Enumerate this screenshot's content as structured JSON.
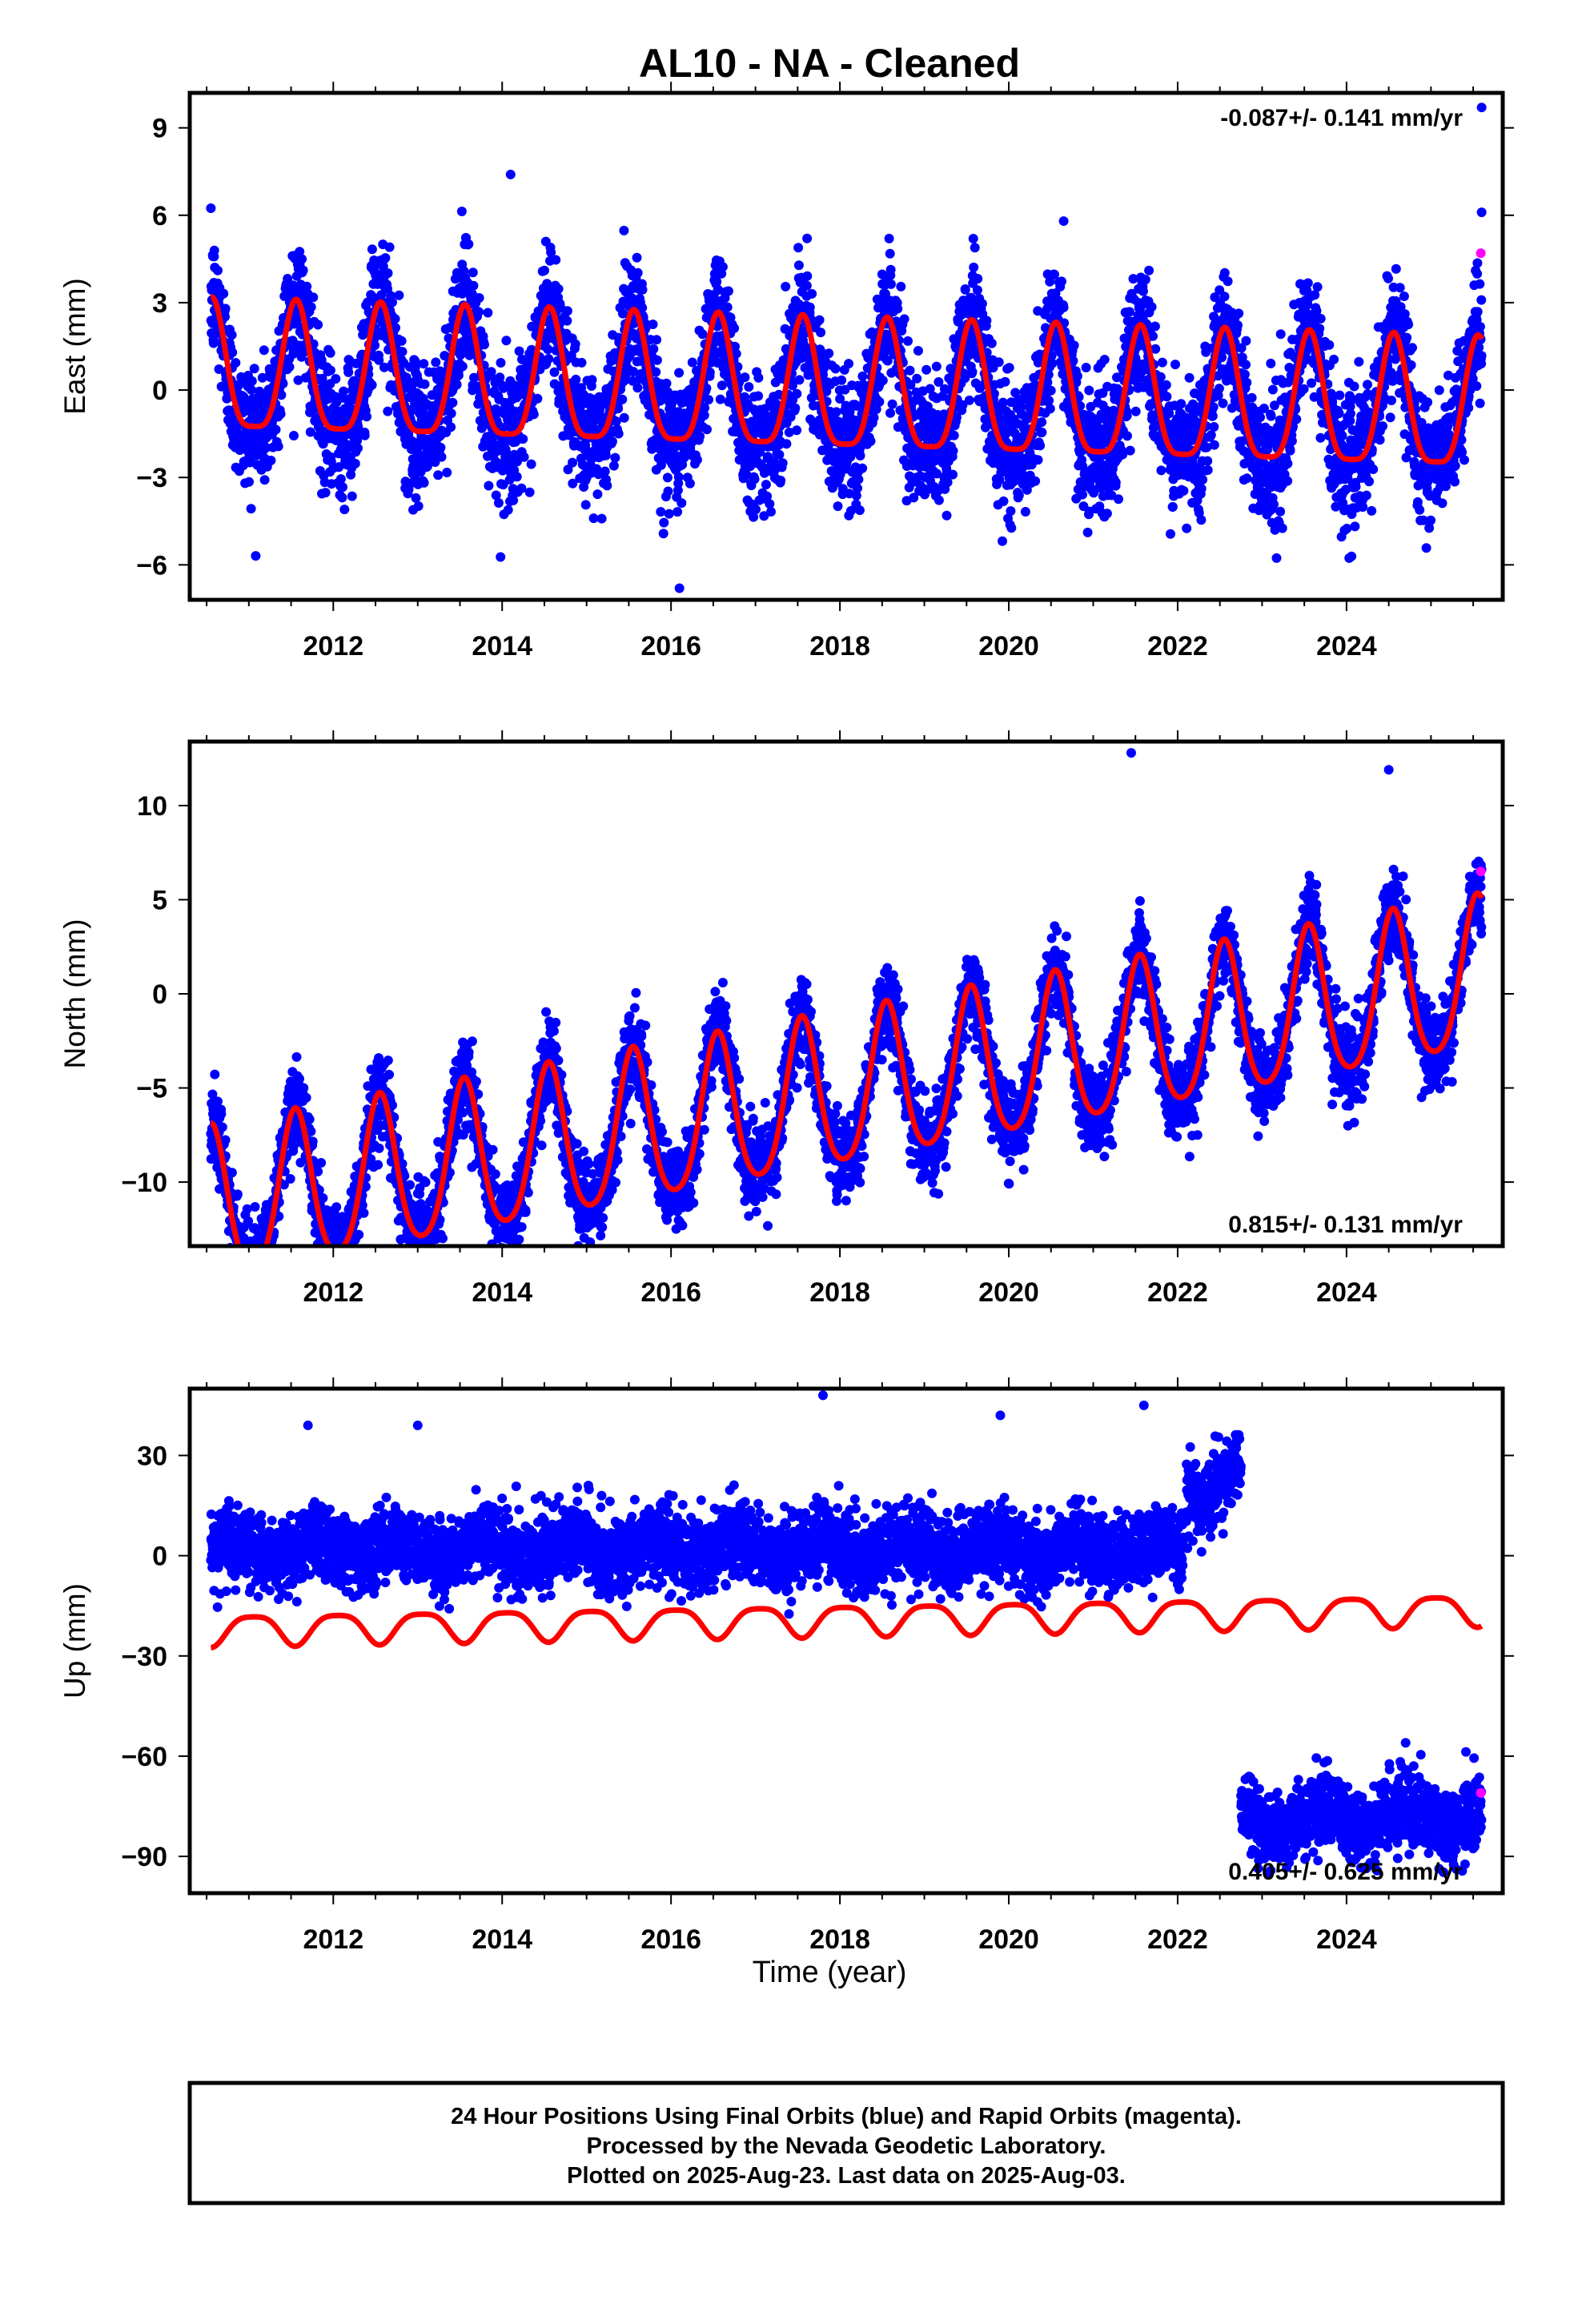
{
  "title": "AL10  - NA - Cleaned",
  "xlabel": "Time (year)",
  "footer": [
    "24 Hour Positions Using Final Orbits (blue) and Rapid Orbits (magenta).",
    "Processed by the Nevada Geodetic Laboratory.",
    "Plotted on 2025-Aug-23. Last data on 2025-Aug-03."
  ],
  "colors": {
    "final": "#0000ff",
    "rapid": "#ff00ff",
    "model": "#ff0000",
    "frame": "#000000"
  },
  "chart_data": [
    {
      "type": "scatter",
      "ylabel": "East (mm)",
      "rate_text": "-0.087+/- 0.141 mm/yr",
      "xlim": [
        2010.3,
        2025.85
      ],
      "ylim": [
        -7.2,
        10.2
      ],
      "x_ticks": [
        "2012",
        "2014",
        "2016",
        "2018",
        "2020",
        "2022",
        "2024"
      ],
      "y_ticks": [
        "9",
        "6",
        "3",
        "0",
        "-3",
        "-6"
      ],
      "y_tick_values": [
        9,
        6,
        3,
        0,
        -3,
        -6
      ],
      "model": {
        "first_epoch": 2010.55,
        "last_epoch": 2025.6,
        "offset": -0.2,
        "trend": -0.087,
        "annual_amp": 2.2,
        "annual_peak": 0.56,
        "semiannual_amp": 0.55,
        "semiannual_peak": 0.06
      },
      "scatter_sd": 1.1,
      "outliers": [
        [
          2014.1,
          7.4
        ],
        [
          2016.1,
          -6.8
        ],
        [
          2020.65,
          5.8
        ],
        [
          2025.6,
          9.7
        ],
        [
          2025.6,
          6.1
        ]
      ],
      "rapid_points": [
        [
          2025.59,
          4.7
        ]
      ],
      "gaps": []
    },
    {
      "type": "scatter",
      "ylabel": "North (mm)",
      "rate_text": "0.815+/- 0.131 mm/yr",
      "xlim": [
        2010.3,
        2025.85
      ],
      "ylim": [
        -13.4,
        13.4
      ],
      "x_ticks": [
        "2012",
        "2014",
        "2016",
        "2018",
        "2020",
        "2022",
        "2024"
      ],
      "y_ticks": [
        "10",
        "5",
        "0",
        "-5",
        "-10"
      ],
      "y_tick_values": [
        10,
        5,
        0,
        -5,
        -10
      ],
      "model": {
        "first_epoch": 2010.55,
        "last_epoch": 2025.6,
        "offset": -5.4,
        "trend": 0.815,
        "annual_amp": 4.0,
        "annual_peak": 0.55,
        "semiannual_amp": 0.6,
        "semiannual_peak": 0.05
      },
      "scatter_sd": 1.1,
      "outliers": [
        [
          2021.45,
          12.8
        ],
        [
          2010.9,
          -12.6
        ],
        [
          2013.0,
          -11.8
        ],
        [
          2024.5,
          11.9
        ]
      ],
      "rapid_points": [
        [
          2025.59,
          6.5
        ]
      ],
      "gaps": []
    },
    {
      "type": "scatter",
      "ylabel": "Up (mm)",
      "rate_text": "0.405+/- 0.625 mm/yr",
      "xlim": [
        2010.3,
        2025.85
      ],
      "ylim": [
        -101,
        50
      ],
      "x_ticks": [
        "2012",
        "2014",
        "2016",
        "2018",
        "2020",
        "2022",
        "2024"
      ],
      "y_ticks": [
        "30",
        "0",
        "-30",
        "-60",
        "-90"
      ],
      "y_tick_values": [
        30,
        0,
        -30,
        -60,
        -90
      ],
      "model": {
        "first_epoch": 2010.55,
        "last_epoch": 2025.6,
        "offset": -19.0,
        "trend": 0.405,
        "annual_amp": 4.5,
        "annual_peak": 0.05,
        "semiannual_amp": 1.0,
        "semiannual_peak": 0.3
      },
      "scatter_sd": 5.5,
      "segments": [
        {
          "start": 2010.55,
          "end": 2022.07,
          "level": 2.0,
          "amp": 3.0,
          "peak": 0.8
        },
        {
          "start": 2022.1,
          "end": 2022.75,
          "level": 22.0,
          "amp": 5.0,
          "peak": 0.8
        },
        {
          "start": 2022.75,
          "end": 2025.6,
          "level": -79.0,
          "amp": 4.0,
          "peak": 0.7
        }
      ],
      "outliers": [
        [
          2017.8,
          48.0
        ],
        [
          2021.6,
          45.0
        ],
        [
          2011.7,
          39.0
        ],
        [
          2013.0,
          39.0
        ],
        [
          2019.9,
          42.0
        ],
        [
          2024.7,
          -56.0
        ]
      ],
      "rapid_points": [
        [
          2025.59,
          -71.0
        ]
      ],
      "gaps": []
    }
  ]
}
